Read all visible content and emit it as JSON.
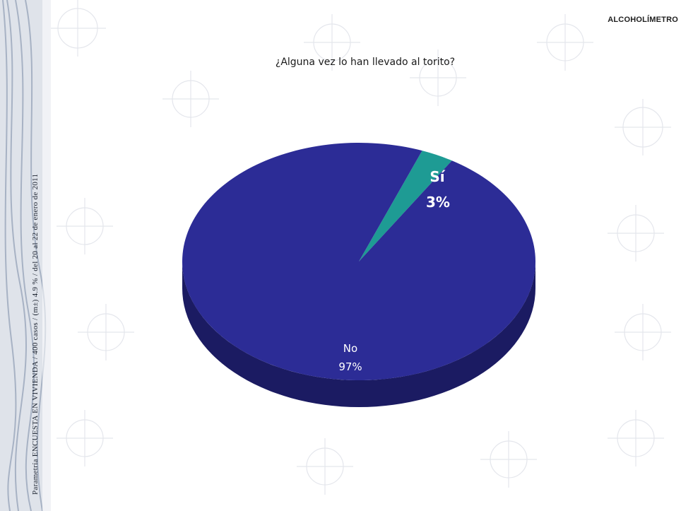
{
  "header": {
    "section_label": "ALCOHOLÍMETRO",
    "side_caption": "Parametría  ENCUESTA EN VIVIENDA / 400 casos / (m±) 4.9 % / del 20 al 22 de enero de 2011"
  },
  "colors": {
    "no_slice": "#2c2c96",
    "no_side": "#1b1b62",
    "si_slice": "#1e9b94",
    "si_side": "#0f5f5a"
  },
  "chart_data": {
    "type": "pie",
    "title": "¿Alguna vez lo han llevado al torito?",
    "categories": [
      "Sí",
      "No"
    ],
    "values": [
      3,
      97
    ],
    "labels": [
      {
        "category": "Sí",
        "percent": "3%"
      },
      {
        "category": "No",
        "percent": "97%"
      }
    ],
    "legend": "none",
    "style": "3d"
  }
}
